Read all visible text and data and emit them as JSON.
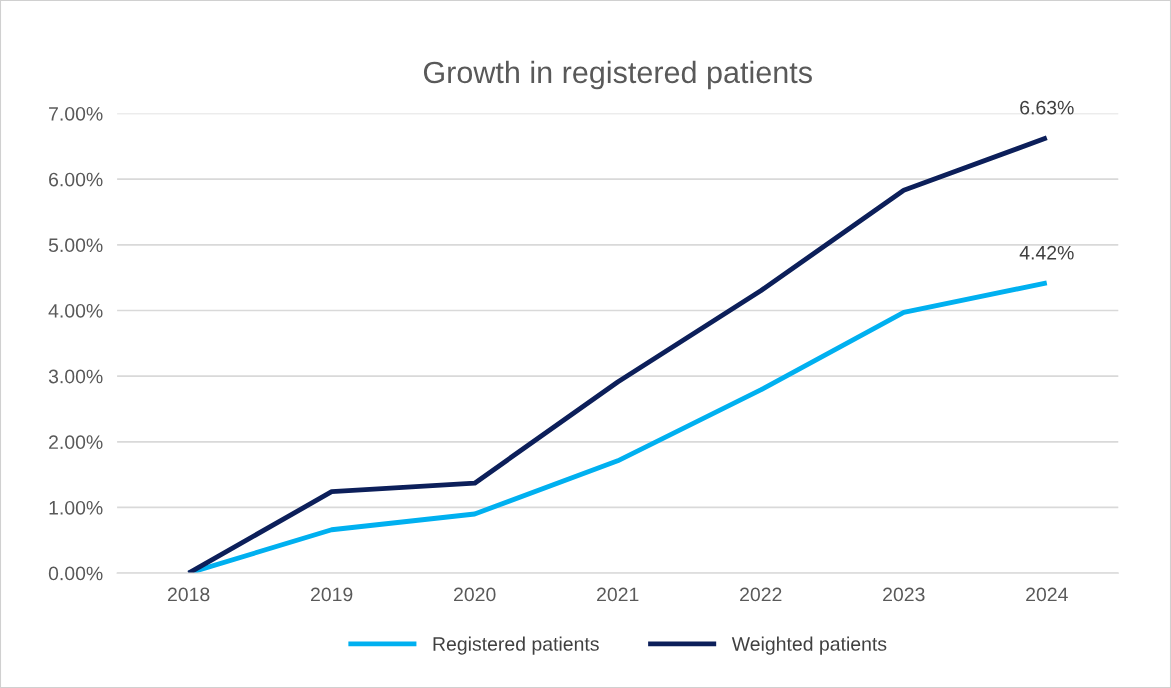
{
  "chart_data": {
    "type": "line",
    "title": "Growth in registered patients",
    "categories": [
      "2018",
      "2019",
      "2020",
      "2021",
      "2022",
      "2023",
      "2024"
    ],
    "series": [
      {
        "name": "Registered patients",
        "color": "#00b0f0",
        "values": [
          0,
          0.66,
          0.9,
          1.71,
          2.79,
          3.97,
          4.42
        ],
        "value_labels": [
          null,
          null,
          null,
          null,
          null,
          null,
          "4.42%"
        ]
      },
      {
        "name": "Weighted patients",
        "color": "#0c1f5a",
        "values": [
          0,
          1.24,
          1.37,
          2.91,
          4.3,
          5.83,
          6.63
        ],
        "value_labels": [
          null,
          null,
          null,
          null,
          null,
          null,
          "6.63%"
        ]
      }
    ],
    "ylim": [
      0,
      7
    ],
    "yticks": [
      {
        "value": 0,
        "label": "0.00%"
      },
      {
        "value": 1,
        "label": "1.00%"
      },
      {
        "value": 2,
        "label": "2.00%"
      },
      {
        "value": 3,
        "label": "3.00%"
      },
      {
        "value": 4,
        "label": "4.00%"
      },
      {
        "value": 5,
        "label": "5.00%"
      },
      {
        "value": 6,
        "label": "6.00%"
      },
      {
        "value": 7,
        "label": "7.00%"
      }
    ],
    "grid": "y",
    "legend": "bottom",
    "marker": "none",
    "line_style": "solid"
  }
}
